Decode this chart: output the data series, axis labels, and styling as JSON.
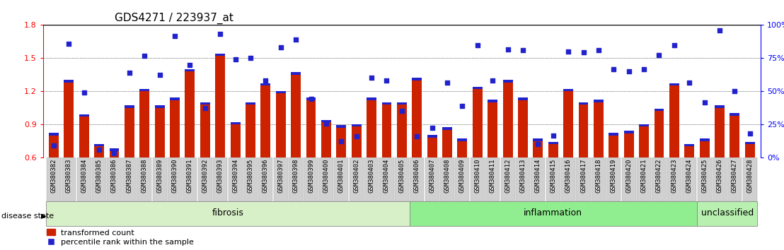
{
  "title": "GDS4271 / 223937_at",
  "samples": [
    "GSM380382",
    "GSM380383",
    "GSM380384",
    "GSM380385",
    "GSM380386",
    "GSM380387",
    "GSM380388",
    "GSM380389",
    "GSM380390",
    "GSM380391",
    "GSM380392",
    "GSM380393",
    "GSM380394",
    "GSM380395",
    "GSM380396",
    "GSM380397",
    "GSM380398",
    "GSM380399",
    "GSM380400",
    "GSM380401",
    "GSM380402",
    "GSM380403",
    "GSM380404",
    "GSM380405",
    "GSM380406",
    "GSM380407",
    "GSM380408",
    "GSM380409",
    "GSM380410",
    "GSM380411",
    "GSM380412",
    "GSM380413",
    "GSM380414",
    "GSM380415",
    "GSM380416",
    "GSM380417",
    "GSM380418",
    "GSM380419",
    "GSM380420",
    "GSM380421",
    "GSM380422",
    "GSM380423",
    "GSM380424",
    "GSM380425",
    "GSM380426",
    "GSM380427",
    "GSM380428"
  ],
  "bar_values": [
    0.8,
    1.28,
    0.97,
    0.7,
    0.66,
    1.05,
    1.2,
    1.05,
    1.12,
    1.38,
    1.08,
    1.52,
    0.9,
    1.08,
    1.25,
    1.18,
    1.35,
    1.12,
    0.92,
    0.87,
    0.88,
    1.12,
    1.08,
    1.08,
    1.3,
    0.78,
    0.85,
    0.75,
    1.22,
    1.1,
    1.28,
    1.12,
    0.75,
    0.72,
    1.2,
    1.08,
    1.1,
    0.8,
    0.82,
    0.88,
    1.02,
    1.25,
    0.7,
    0.75,
    1.05,
    0.98,
    0.72
  ],
  "dot_values": [
    0.71,
    1.63,
    1.19,
    0.67,
    0.64,
    1.37,
    1.52,
    1.35,
    1.7,
    1.44,
    1.05,
    1.72,
    1.49,
    1.5,
    1.3,
    1.6,
    1.67,
    1.13,
    0.91,
    0.75,
    0.79,
    1.32,
    1.3,
    1.02,
    0.79,
    0.87,
    1.28,
    1.07,
    1.62,
    1.3,
    1.58,
    1.57,
    0.72,
    0.8,
    1.56,
    1.55,
    1.57,
    1.4,
    1.38,
    1.4,
    1.53,
    1.62,
    1.28,
    1.1,
    1.75,
    1.2,
    0.82
  ],
  "groups": [
    {
      "label": "fibrosis",
      "start": 0,
      "end": 24,
      "color": "#d8f0c8"
    },
    {
      "label": "inflammation",
      "start": 24,
      "end": 43,
      "color": "#90ee90"
    },
    {
      "label": "unclassified",
      "start": 43,
      "end": 47,
      "color": "#b8f0b0"
    }
  ],
  "ylim_left": [
    0.6,
    1.8
  ],
  "ylim_right": [
    0,
    100
  ],
  "yticks_left": [
    0.6,
    0.9,
    1.2,
    1.5,
    1.8
  ],
  "yticks_right": [
    0,
    25,
    50,
    75,
    100
  ],
  "bar_color": "#cc2200",
  "dot_color": "#2222cc",
  "title_fontsize": 11,
  "tick_fontsize": 6.5,
  "legend_fontsize": 8,
  "group_label_fontsize": 9,
  "disease_state_fontsize": 8
}
